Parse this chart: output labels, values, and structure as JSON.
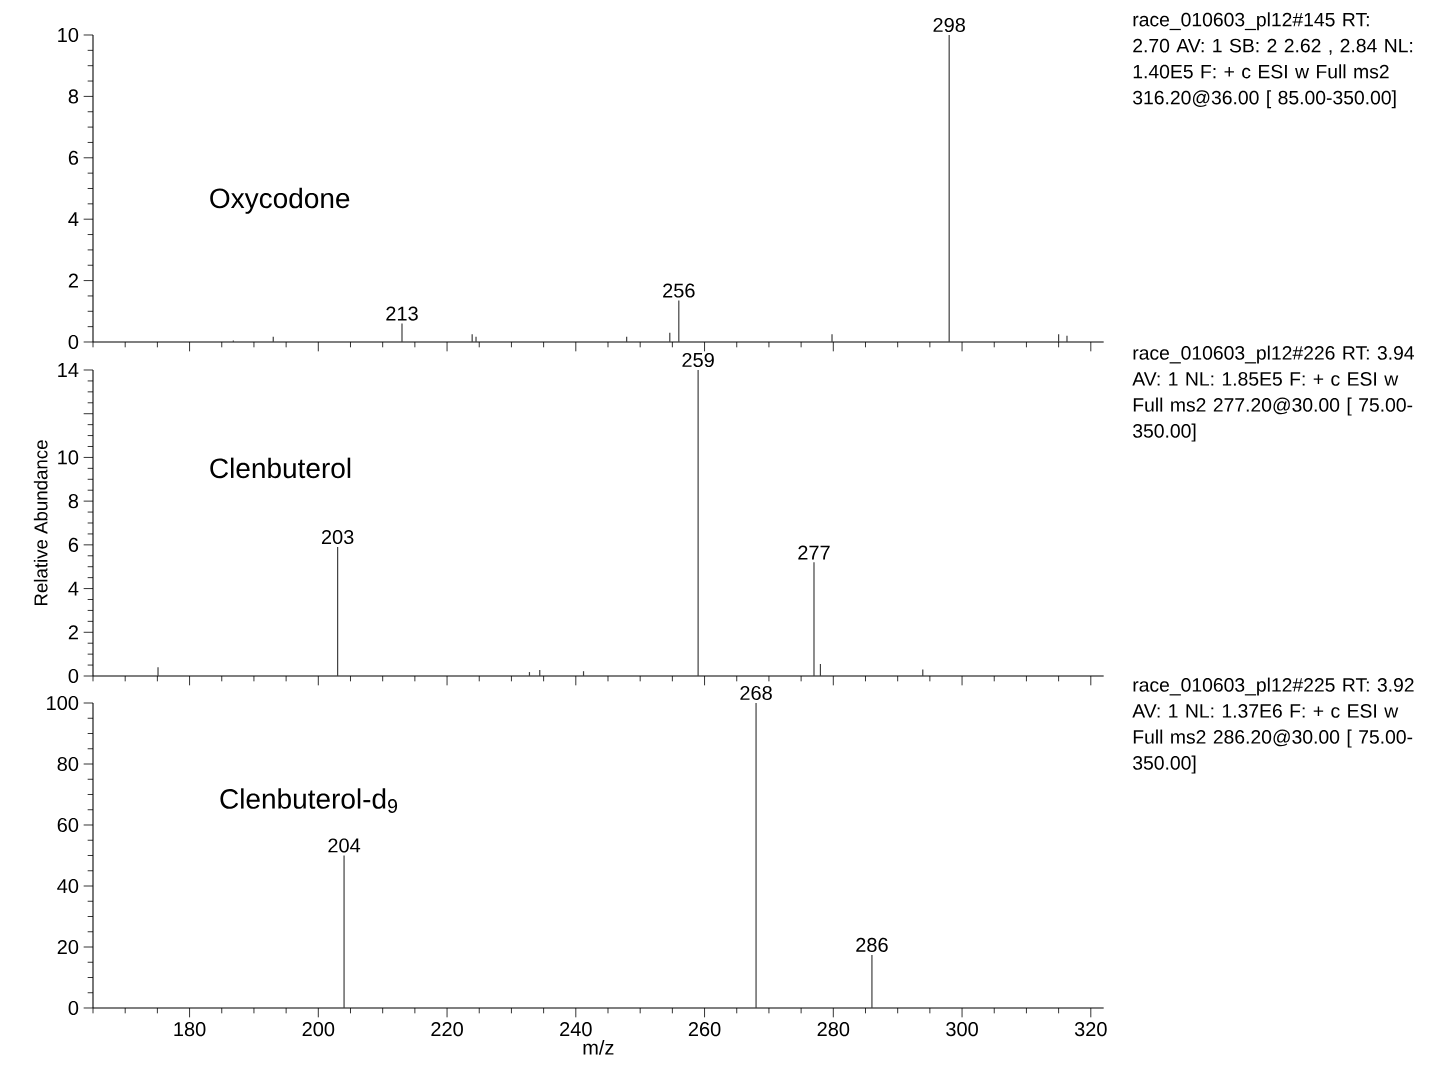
{
  "chart_data": [
    {
      "type": "bar",
      "title": "Oxycodone",
      "color": "#404040",
      "x": [
        186.8,
        193.0,
        213,
        223.9,
        224.5,
        247.9,
        254.6,
        256,
        279.8,
        298,
        315.0,
        316.3
      ],
      "values": [
        0.05,
        0.17,
        0.6,
        0.25,
        0.17,
        0.17,
        0.3,
        1.35,
        0.25,
        10.0,
        0.25,
        0.2
      ],
      "xlim": [
        165,
        322
      ],
      "xticks": [
        180,
        200,
        220,
        240,
        260,
        280,
        300,
        320
      ],
      "ylim": [
        0,
        10
      ],
      "yticks": [
        0,
        2,
        4,
        6,
        8,
        10
      ],
      "tick_labels": "y",
      "annotations": [
        {
          "text": "213",
          "x": 213,
          "y": 0.6
        },
        {
          "text": "256",
          "x": 256,
          "y": 1.35
        },
        {
          "text": "298",
          "x": 298,
          "y": 10.0
        },
        "race_010603_pl12#145  RT: 2.70  AV: 1 SB: 2  2.62  , 2.84 NL: 1.40E5 F: + c ESI w Full ms2 316.20@36.00 [ 85.00-350.00]"
      ]
    },
    {
      "type": "bar",
      "title": "Clenbuterol",
      "color": "#404040",
      "ylabel": "Relative Abundance",
      "x": [
        175.1,
        203,
        232.8,
        234.4,
        241.2,
        259,
        277,
        278.0,
        293.9
      ],
      "values": [
        0.4,
        5.9,
        0.18,
        0.27,
        0.22,
        14.0,
        5.2,
        0.55,
        0.3
      ],
      "xlim": [
        165,
        322
      ],
      "xticks": [
        180,
        200,
        220,
        240,
        260,
        280,
        300,
        320
      ],
      "ylim": [
        0,
        14
      ],
      "yticks": [
        0,
        2,
        4,
        6,
        8,
        10,
        {
          "value": 12,
          "label": null
        },
        14
      ],
      "tick_labels": "y",
      "annotations": [
        {
          "text": "203",
          "x": 203,
          "y": 5.9
        },
        {
          "text": "259",
          "x": 259,
          "y": 14.0
        },
        {
          "text": "277",
          "x": 277,
          "y": 5.2
        },
        "race_010603_pl12#226  RT: 3.94  AV: 1 NL: 1.85E5 F: + c ESI w Full ms2 277.20@30.00 [ 75.00-350.00]"
      ]
    },
    {
      "type": "bar",
      "title": "Clenbuterol-d$_{9}$",
      "color": "#404040",
      "xlabel": "m/z",
      "x": [
        204,
        268,
        286
      ],
      "values": [
        50,
        100,
        17.4
      ],
      "xlim": [
        165,
        322
      ],
      "xticks": [
        180,
        200,
        220,
        240,
        260,
        280,
        300,
        320
      ],
      "ylim": [
        0,
        100
      ],
      "yticks": [
        0,
        20,
        40,
        60,
        80,
        100
      ],
      "annotations": [
        {
          "text": "204",
          "x": 204,
          "y": 50
        },
        {
          "text": "268",
          "x": 268,
          "y": 100
        },
        {
          "text": "286",
          "x": 286,
          "y": 17.4
        },
        "race_010603_pl12#225  RT: 3.92  AV: 1 NL: 1.37E6 F: + c ESI w Full ms2 286.20@30.00 [ 75.00-350.00]"
      ]
    }
  ]
}
